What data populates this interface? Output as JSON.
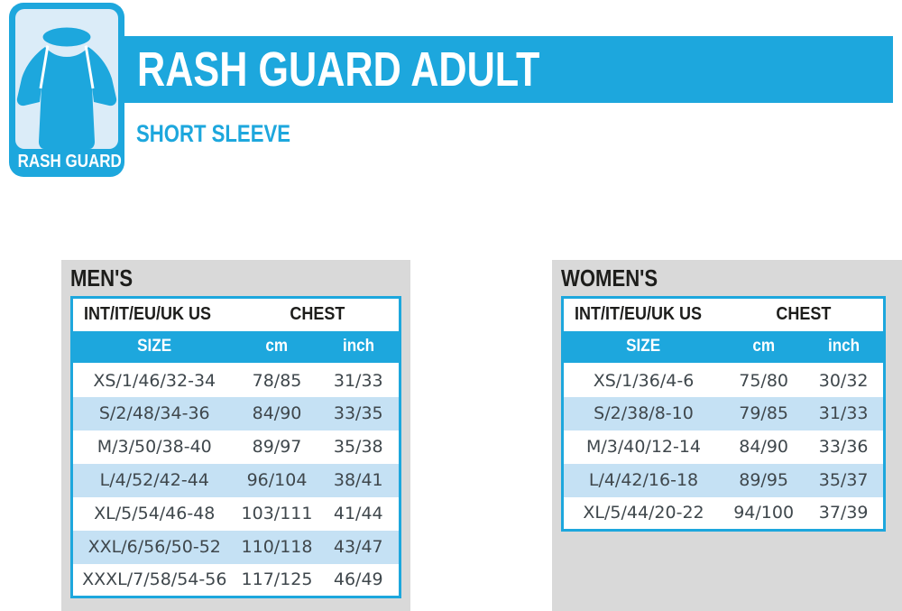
{
  "brand": {
    "badge_label": "RASH GUARD",
    "title": "RASH GUARD ADULT",
    "subtitle": "SHORT SLEEVE"
  },
  "colors": {
    "primary_blue": "#1da7dd",
    "row_alt_blue": "#c5e1f4",
    "badge_inner_blue": "#dbecf8",
    "panel_gray": "#d9d9d9",
    "header_text": "#1d1d1b",
    "data_text": "#3f474c"
  },
  "icons": [
    {
      "name": "rash-guard-shirt-icon",
      "description": "short-sleeve rash guard shirt silhouette"
    }
  ],
  "tables": [
    {
      "section_title": "MEN'S",
      "col_group_left": "INT/IT/EU/UK US",
      "col_group_right": "CHEST",
      "columns": [
        "SIZE",
        "cm",
        "inch"
      ],
      "rows": [
        {
          "size": "XS/1/46/32-34",
          "cm": "78/85",
          "inch": "31/33"
        },
        {
          "size": "S/2/48/34-36",
          "cm": "84/90",
          "inch": "33/35"
        },
        {
          "size": "M/3/50/38-40",
          "cm": "89/97",
          "inch": "35/38"
        },
        {
          "size": "L/4/52/42-44",
          "cm": "96/104",
          "inch": "38/41"
        },
        {
          "size": "XL/5/54/46-48",
          "cm": "103/111",
          "inch": "41/44"
        },
        {
          "size": "XXL/6/56/50-52",
          "cm": "110/118",
          "inch": "43/47"
        },
        {
          "size": "XXXL/7/58/54-56",
          "cm": "117/125",
          "inch": "46/49"
        }
      ]
    },
    {
      "section_title": "WOMEN'S",
      "col_group_left": "INT/IT/EU/UK US",
      "col_group_right": "CHEST",
      "columns": [
        "SIZE",
        "cm",
        "inch"
      ],
      "rows": [
        {
          "size": "XS/1/36/4-6",
          "cm": "75/80",
          "inch": "30/32"
        },
        {
          "size": "S/2/38/8-10",
          "cm": "79/85",
          "inch": "31/33"
        },
        {
          "size": "M/3/40/12-14",
          "cm": "84/90",
          "inch": "33/36"
        },
        {
          "size": "L/4/42/16-18",
          "cm": "89/95",
          "inch": "35/37"
        },
        {
          "size": "XL/5/44/20-22",
          "cm": "94/100",
          "inch": "37/39"
        }
      ]
    }
  ]
}
